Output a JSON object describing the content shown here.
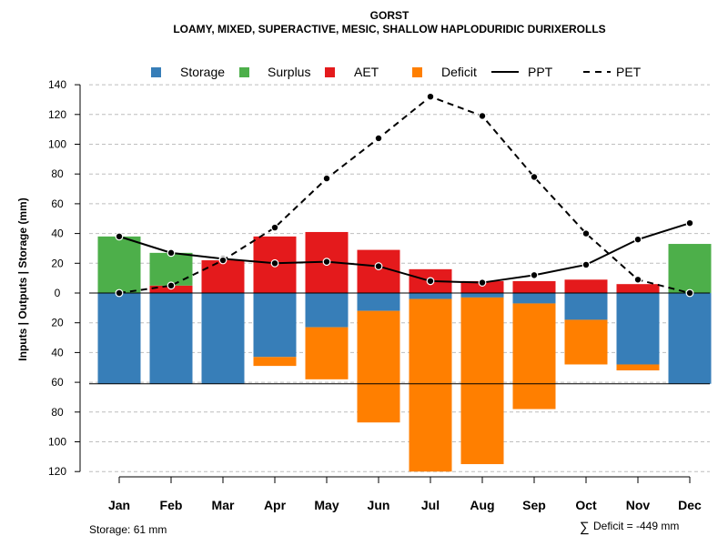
{
  "chart_data": {
    "type": "bar",
    "title": "GORST",
    "subtitle": "LOAMY, MIXED, SUPERACTIVE, MESIC, SHALLOW HAPLODURIDIC DURIXEROLLS",
    "ylabel": "Inputs | Outputs | Storage    (mm)",
    "ylim": [
      -120,
      140
    ],
    "yticks": [
      140,
      120,
      100,
      80,
      60,
      40,
      20,
      0,
      -20,
      -40,
      -60,
      -80,
      -100,
      -120
    ],
    "ytick_labels": [
      "140",
      "120",
      "100",
      "80",
      "60",
      "40",
      "20",
      "0",
      "20",
      "40",
      "60",
      "80",
      "100",
      "120"
    ],
    "categories": [
      "Jan",
      "Feb",
      "Mar",
      "Apr",
      "May",
      "Jun",
      "Jul",
      "Aug",
      "Sep",
      "Oct",
      "Nov",
      "Dec"
    ],
    "legend": [
      {
        "label": "Storage",
        "kind": "box",
        "color": "#377EB8"
      },
      {
        "label": "Surplus",
        "kind": "box",
        "color": "#4DAF4A"
      },
      {
        "label": "AET",
        "kind": "box",
        "color": "#E41A1C"
      },
      {
        "label": "Deficit",
        "kind": "box",
        "color": "#FF7F00"
      },
      {
        "label": "PPT",
        "kind": "solid",
        "color": "#000000"
      },
      {
        "label": "PET",
        "kind": "dashed",
        "color": "#000000"
      }
    ],
    "colors": {
      "storage": "#377EB8",
      "surplus": "#4DAF4A",
      "aet": "#E41A1C",
      "deficit": "#FF7F00",
      "grid": "#BEBEBE"
    },
    "storage_capacity": 61,
    "positive_stack": {
      "aet": [
        0,
        5,
        22,
        38,
        41,
        29,
        16,
        8,
        8,
        9,
        6,
        0
      ],
      "surplus": [
        38,
        22,
        0,
        0,
        0,
        0,
        0,
        0,
        0,
        0,
        0,
        33
      ]
    },
    "negative_stack": {
      "storage": [
        61,
        61,
        61,
        43,
        23,
        12,
        4,
        3,
        7,
        18,
        48,
        61
      ],
      "deficit": [
        0,
        0,
        0,
        6,
        35,
        75,
        116,
        112,
        71,
        30,
        4,
        0
      ]
    },
    "series": [
      {
        "name": "PPT",
        "style": "solid",
        "values": [
          38,
          27,
          23,
          20,
          21,
          18,
          8,
          7,
          12,
          19,
          36,
          47
        ]
      },
      {
        "name": "PET",
        "style": "dashed",
        "values": [
          0,
          5,
          22,
          44,
          77,
          104,
          132,
          119,
          78,
          40,
          9,
          0
        ]
      }
    ],
    "annotations": {
      "storage_note": "Storage: 61 mm",
      "deficit_symbol": "∑",
      "deficit_note": "Deficit = -449 mm"
    }
  }
}
